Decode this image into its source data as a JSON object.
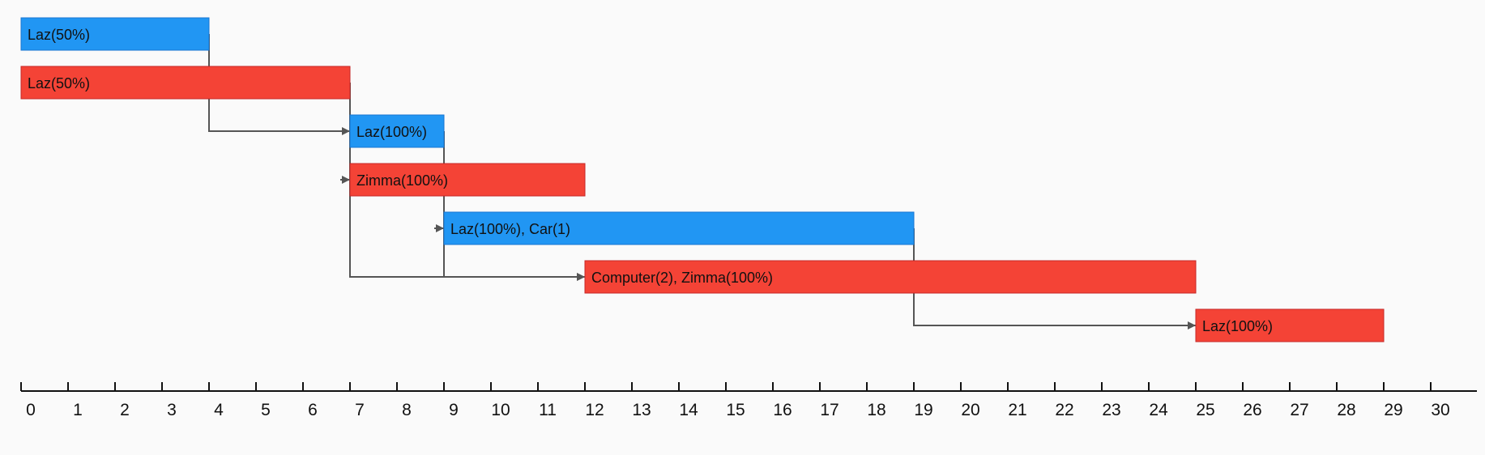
{
  "chart_data": {
    "type": "gantt",
    "title": "",
    "xlabel": "",
    "ylabel": "",
    "xlim": [
      0,
      31
    ],
    "ticks": [
      "0",
      "1",
      "2",
      "3",
      "4",
      "5",
      "6",
      "7",
      "8",
      "9",
      "10",
      "11",
      "12",
      "13",
      "14",
      "15",
      "16",
      "17",
      "18",
      "19",
      "20",
      "21",
      "22",
      "23",
      "24",
      "25",
      "26",
      "27",
      "28",
      "29",
      "30"
    ],
    "colors": {
      "blue": "#2196f3",
      "red": "#f44336",
      "arrow": "#555555",
      "axis": "#111111"
    },
    "tasks": [
      {
        "label": "Laz(50%)",
        "start": 0,
        "end": 4,
        "color": "blue"
      },
      {
        "label": "Laz(50%)",
        "start": 0,
        "end": 7,
        "color": "red"
      },
      {
        "label": "Laz(100%)",
        "start": 7,
        "end": 9,
        "color": "blue"
      },
      {
        "label": "Zimma(100%)",
        "start": 7,
        "end": 12,
        "color": "red"
      },
      {
        "label": "Laz(100%), Car(1)",
        "start": 9,
        "end": 19,
        "color": "blue"
      },
      {
        "label": "Computer(2), Zimma(100%)",
        "start": 12,
        "end": 25,
        "color": "red"
      },
      {
        "label": "Laz(100%)",
        "start": 25,
        "end": 29,
        "color": "red"
      }
    ],
    "dependencies": [
      {
        "from": 0,
        "to": 2
      },
      {
        "from": 1,
        "to": 3
      },
      {
        "from": 1,
        "to": 5
      },
      {
        "from": 2,
        "to": 4
      },
      {
        "from": 2,
        "to": 5
      },
      {
        "from": 4,
        "to": 6
      }
    ]
  }
}
